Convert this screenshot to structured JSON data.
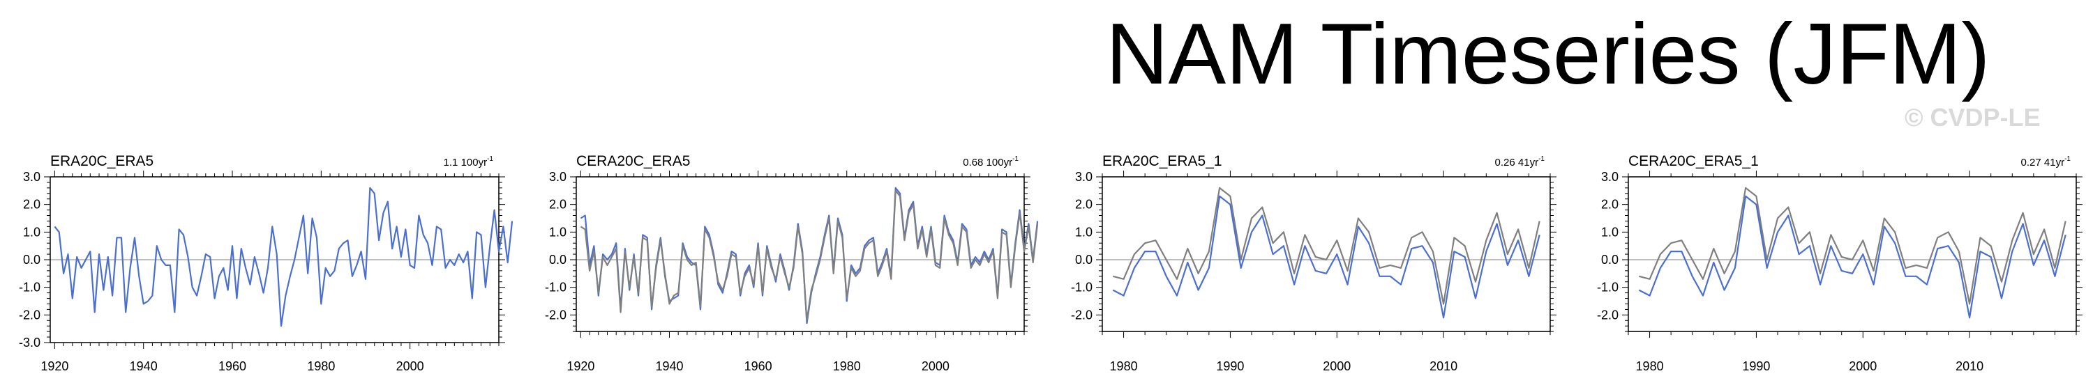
{
  "page": {
    "title": "NAM Timeseries (JFM)",
    "watermark": "© CVDP-LE"
  },
  "colors": {
    "obs": "#4a6fd1",
    "ref": "#7f7f7f",
    "zero": "#aaaaaa",
    "frame": "#000000"
  },
  "chart_data": [
    {
      "type": "line",
      "label": "ERA20C_ERA5",
      "trend": "1.1 100yr",
      "trend_sup": "-1",
      "xlim": [
        1919,
        2020
      ],
      "ylim": [
        -3.0,
        3.0
      ],
      "yticks": [
        "3.0",
        "2.0",
        "1.0",
        "0.0",
        "-1.0",
        "-2.0",
        "-3.0"
      ],
      "ytick_values": [
        3,
        2,
        1,
        0,
        -1,
        -2,
        -3
      ],
      "xticks": [
        1920,
        1940,
        1960,
        1980,
        2000
      ],
      "x_start": 1920,
      "series": [
        {
          "values": [
            1.2,
            1.0,
            -0.5,
            0.2,
            -1.4,
            0.1,
            -0.3,
            0.0,
            0.3,
            -1.9,
            0.2,
            -1.1,
            0.1,
            -1.3,
            0.8,
            0.8,
            -1.9,
            -0.3,
            0.8,
            -0.6,
            -1.6,
            -1.5,
            -1.3,
            0.5,
            0.0,
            -0.2,
            -0.2,
            -1.9,
            1.1,
            0.9,
            0.1,
            -1.0,
            -1.3,
            -0.6,
            0.2,
            0.1,
            -1.4,
            -0.6,
            -0.3,
            -1.1,
            0.5,
            -1.4,
            0.4,
            -0.3,
            -0.9,
            0.1,
            -0.5,
            -1.2,
            -0.3,
            1.2,
            0.2,
            -2.4,
            -1.3,
            -0.6,
            0.0,
            0.8,
            1.6,
            -0.5,
            1.5,
            0.8,
            -1.6,
            -0.3,
            -0.6,
            -0.4,
            0.4,
            0.6,
            0.7,
            -0.6,
            -0.2,
            0.3,
            -0.7,
            2.6,
            2.4,
            0.7,
            1.7,
            2.1,
            0.4,
            1.2,
            0.1,
            1.1,
            -0.2,
            -0.3,
            1.6,
            0.9,
            0.6,
            -0.2,
            1.2,
            1.1,
            -0.3,
            0.0,
            -0.2,
            0.2,
            -0.1,
            0.3,
            -1.4,
            1.0,
            0.9,
            -1.0,
            0.5,
            1.8,
            0.3,
            1.2,
            -0.1,
            1.4
          ],
          "color": "obs"
        }
      ]
    },
    {
      "type": "line",
      "label": "CERA20C_ERA5",
      "trend": "0.68 100yr",
      "trend_sup": "-1",
      "xlim": [
        1919,
        2020
      ],
      "ylim": [
        -2.6,
        3.0
      ],
      "yticks": [
        "3.0",
        "2.0",
        "1.0",
        "0.0",
        "-1.0",
        "-2.0"
      ],
      "ytick_values": [
        3,
        2,
        1,
        0,
        -1,
        -2
      ],
      "xticks": [
        1920,
        1940,
        1960,
        1980,
        2000
      ],
      "x_start": 1920,
      "series": [
        {
          "values": [
            1.5,
            1.6,
            -0.2,
            0.5,
            -1.3,
            0.2,
            0.0,
            0.2,
            0.6,
            -1.8,
            0.4,
            -1.1,
            0.2,
            -1.3,
            0.9,
            0.8,
            -1.8,
            -0.2,
            0.8,
            -0.6,
            -1.5,
            -1.4,
            -1.3,
            0.6,
            0.1,
            -0.1,
            -0.2,
            -1.8,
            1.2,
            0.9,
            0.2,
            -0.9,
            -1.2,
            -0.5,
            0.3,
            0.2,
            -1.3,
            -0.5,
            -0.2,
            -1.0,
            0.6,
            -1.3,
            0.5,
            -0.2,
            -0.8,
            0.2,
            -0.4,
            -1.1,
            -0.2,
            1.3,
            0.3,
            -2.3,
            -1.2,
            -0.5,
            0.1,
            0.9,
            1.6,
            -0.4,
            1.5,
            0.9,
            -1.5,
            -0.2,
            -0.5,
            -0.3,
            0.5,
            0.7,
            0.8,
            -0.5,
            -0.1,
            0.4,
            -0.6,
            2.6,
            2.4,
            0.8,
            1.8,
            2.1,
            0.5,
            1.2,
            0.2,
            1.2,
            -0.1,
            -0.2,
            1.6,
            1.0,
            0.7,
            -0.1,
            1.3,
            1.1,
            -0.2,
            0.1,
            -0.1,
            0.3,
            0.0,
            0.4,
            -1.3,
            1.1,
            1.0,
            -0.9,
            0.6,
            1.8,
            0.4,
            1.3,
            0.0,
            1.4
          ],
          "color": "obs"
        },
        {
          "values": [
            1.2,
            1.1,
            -0.4,
            0.3,
            -1.2,
            0.1,
            -0.2,
            0.1,
            0.4,
            -1.9,
            0.3,
            -1.0,
            0.1,
            -1.2,
            0.8,
            0.7,
            -1.7,
            -0.3,
            0.7,
            -0.5,
            -1.6,
            -1.3,
            -1.2,
            0.5,
            0.0,
            -0.2,
            -0.1,
            -1.7,
            1.1,
            0.8,
            0.1,
            -0.8,
            -1.1,
            -0.6,
            0.2,
            0.1,
            -1.2,
            -0.6,
            -0.3,
            -0.9,
            0.5,
            -1.2,
            0.4,
            -0.3,
            -0.7,
            0.1,
            -0.5,
            -1.0,
            -0.3,
            1.2,
            0.2,
            -2.2,
            -1.1,
            -0.6,
            0.0,
            0.8,
            1.5,
            -0.5,
            1.4,
            0.8,
            -1.4,
            -0.3,
            -0.6,
            -0.4,
            0.4,
            0.6,
            0.7,
            -0.6,
            -0.2,
            0.3,
            -0.7,
            2.5,
            2.3,
            0.7,
            1.7,
            2.0,
            0.4,
            1.1,
            0.1,
            1.1,
            -0.2,
            -0.3,
            1.5,
            0.9,
            0.6,
            -0.2,
            1.2,
            1.0,
            -0.3,
            0.0,
            -0.2,
            0.2,
            -0.1,
            0.3,
            -1.4,
            1.0,
            0.9,
            -1.0,
            0.5,
            1.7,
            0.3,
            1.2,
            -0.1,
            1.3
          ],
          "color": "ref"
        }
      ]
    },
    {
      "type": "line",
      "label": "ERA20C_ERA5_1",
      "trend": "0.26 41yr",
      "trend_sup": "-1",
      "xlim": [
        1978,
        2020
      ],
      "ylim": [
        -2.6,
        3.0
      ],
      "yticks": [
        "3.0",
        "2.0",
        "1.0",
        "0.0",
        "-1.0",
        "-2.0"
      ],
      "ytick_values": [
        3,
        2,
        1,
        0,
        -1,
        -2
      ],
      "xticks": [
        1980,
        1990,
        2000,
        2010
      ],
      "x_start": 1979,
      "series": [
        {
          "values": [
            -0.6,
            -0.7,
            0.2,
            0.6,
            0.7,
            0.0,
            -0.7,
            0.4,
            -0.5,
            0.3,
            2.6,
            2.3,
            0.0,
            1.5,
            1.9,
            0.6,
            1.0,
            -0.5,
            0.9,
            0.1,
            0.0,
            0.7,
            -0.4,
            1.5,
            1.0,
            -0.3,
            -0.2,
            -0.3,
            0.8,
            1.0,
            0.3,
            -1.6,
            0.8,
            0.5,
            -0.8,
            0.7,
            1.7,
            0.2,
            1.1,
            -0.3,
            1.4
          ],
          "color": "ref"
        },
        {
          "values": [
            -1.1,
            -1.3,
            -0.3,
            0.3,
            0.3,
            -0.6,
            -1.3,
            -0.1,
            -1.1,
            -0.3,
            2.3,
            2.0,
            -0.3,
            1.0,
            1.6,
            0.2,
            0.5,
            -0.9,
            0.5,
            -0.4,
            -0.5,
            0.2,
            -0.9,
            1.2,
            0.6,
            -0.6,
            -0.6,
            -0.9,
            0.4,
            0.5,
            -0.1,
            -2.1,
            0.3,
            0.1,
            -1.4,
            0.3,
            1.3,
            -0.2,
            0.7,
            -0.6,
            0.9
          ],
          "color": "obs"
        }
      ]
    },
    {
      "type": "line",
      "label": "CERA20C_ERA5_1",
      "trend": "0.27 41yr",
      "trend_sup": "-1",
      "xlim": [
        1978,
        2020
      ],
      "ylim": [
        -2.6,
        3.0
      ],
      "yticks": [
        "3.0",
        "2.0",
        "1.0",
        "0.0",
        "-1.0",
        "-2.0"
      ],
      "ytick_values": [
        3,
        2,
        1,
        0,
        -1,
        -2
      ],
      "xticks": [
        1980,
        1990,
        2000,
        2010
      ],
      "x_start": 1979,
      "series": [
        {
          "values": [
            -0.6,
            -0.7,
            0.2,
            0.6,
            0.7,
            0.0,
            -0.7,
            0.4,
            -0.5,
            0.3,
            2.6,
            2.3,
            0.0,
            1.5,
            1.9,
            0.6,
            1.0,
            -0.5,
            0.9,
            0.1,
            0.0,
            0.7,
            -0.4,
            1.5,
            1.0,
            -0.3,
            -0.2,
            -0.3,
            0.8,
            1.0,
            0.3,
            -1.6,
            0.8,
            0.5,
            -0.8,
            0.7,
            1.7,
            0.2,
            1.1,
            -0.3,
            1.4
          ],
          "color": "ref"
        },
        {
          "values": [
            -1.1,
            -1.3,
            -0.3,
            0.3,
            0.3,
            -0.6,
            -1.3,
            -0.1,
            -1.1,
            -0.3,
            2.3,
            2.0,
            -0.3,
            1.0,
            1.6,
            0.2,
            0.5,
            -0.9,
            0.5,
            -0.4,
            -0.5,
            0.2,
            -0.9,
            1.2,
            0.6,
            -0.6,
            -0.6,
            -0.9,
            0.4,
            0.5,
            -0.1,
            -2.1,
            0.3,
            0.1,
            -1.4,
            0.3,
            1.3,
            -0.2,
            0.7,
            -0.6,
            0.9
          ],
          "color": "obs"
        }
      ]
    }
  ]
}
